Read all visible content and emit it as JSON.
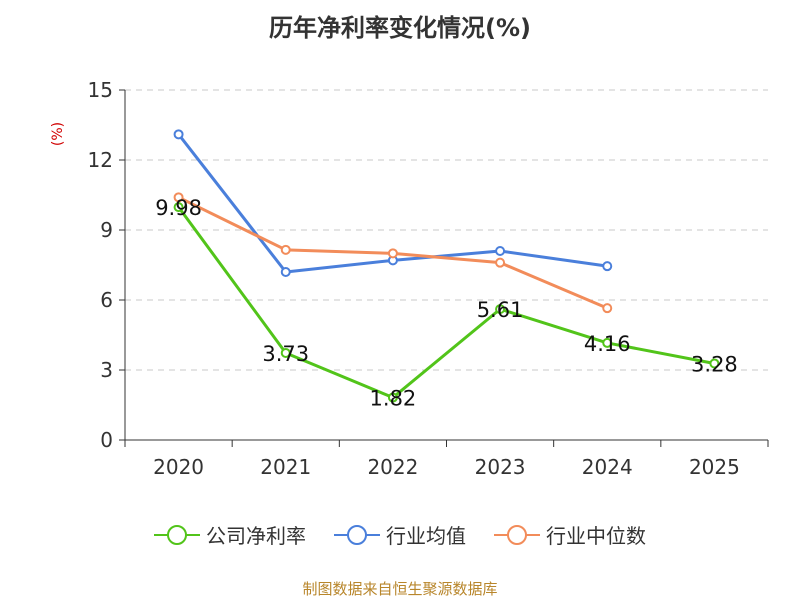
{
  "chart_data": {
    "type": "line",
    "title": "历年净利率变化情况(%)",
    "ylabel": "(%)",
    "categories": [
      "2020",
      "2021",
      "2022",
      "2023",
      "2024",
      "2025"
    ],
    "ylim": [
      0,
      15
    ],
    "yticks": [
      0,
      3,
      6,
      9,
      12,
      15
    ],
    "grid": true,
    "legend_position": "bottom",
    "series": [
      {
        "name": "公司净利率",
        "color": "#52c41a",
        "values": [
          9.98,
          3.73,
          1.82,
          5.61,
          4.16,
          3.28
        ],
        "labels": [
          "9.98",
          "3.73",
          "1.82",
          "5.61",
          "4.16",
          "3.28"
        ]
      },
      {
        "name": "行业均值",
        "color": "#4a7fdb",
        "values": [
          13.1,
          7.2,
          7.7,
          8.1,
          7.45,
          null
        ]
      },
      {
        "name": "行业中位数",
        "color": "#f28c5a",
        "values": [
          10.4,
          8.15,
          8.0,
          7.6,
          5.65,
          null
        ]
      }
    ]
  },
  "source": "制图数据来自恒生聚源数据库"
}
